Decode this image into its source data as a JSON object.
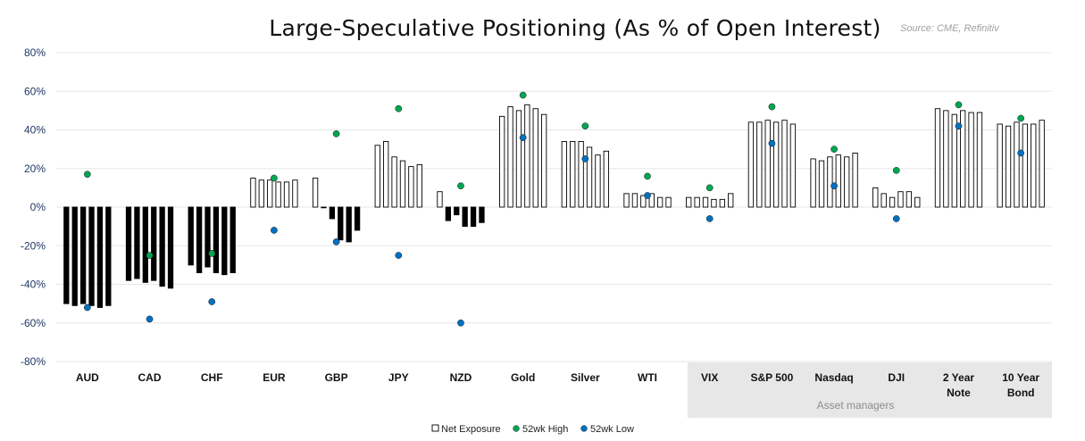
{
  "chart_data": {
    "type": "bar",
    "title": "Large-Speculative Positioning (As % of Open Interest)",
    "source": "Source: CME, Refinitiv",
    "ylim": [
      -80,
      80
    ],
    "yticks": [
      "80%",
      "60%",
      "40%",
      "20%",
      "0%",
      "-20%",
      "-40%",
      "-60%",
      "-80%"
    ],
    "grid": true,
    "legend_position": "bottom-center",
    "shaded_group": {
      "label": "Asset managers",
      "first_category": 10,
      "last_category": 15,
      "color": "#e7e7e7"
    },
    "categories": [
      [
        "AUD"
      ],
      [
        "CAD"
      ],
      [
        "CHF"
      ],
      [
        "EUR"
      ],
      [
        "GBP"
      ],
      [
        "JPY"
      ],
      [
        "NZD"
      ],
      [
        "Gold"
      ],
      [
        "Silver"
      ],
      [
        "WTI"
      ],
      [
        "VIX"
      ],
      [
        "S&P 500"
      ],
      [
        "Nasdaq"
      ],
      [
        "DJI"
      ],
      [
        "2 Year",
        "Note"
      ],
      [
        "10 Year",
        "Bond"
      ]
    ],
    "series": [
      {
        "name": "Net Exposure",
        "kind": "bars",
        "values": [
          [
            -50,
            -51,
            -50,
            -51,
            -52,
            -51
          ],
          [
            -38,
            -37,
            -39,
            -38,
            -41,
            -42
          ],
          [
            -30,
            -34,
            -31,
            -34,
            -35,
            -34
          ],
          [
            15,
            14,
            14,
            13,
            13,
            14
          ],
          [
            15,
            0,
            -6,
            -17,
            -18,
            -12
          ],
          [
            32,
            34,
            26,
            24,
            21,
            22
          ],
          [
            8,
            -7,
            -4,
            -10,
            -10,
            -8
          ],
          [
            47,
            52,
            50,
            53,
            51,
            48
          ],
          [
            34,
            34,
            34,
            31,
            27,
            29
          ],
          [
            7,
            7,
            6,
            7,
            5,
            5
          ],
          [
            5,
            5,
            5,
            4,
            4,
            7
          ],
          [
            44,
            44,
            45,
            44,
            45,
            43
          ],
          [
            25,
            24,
            26,
            27,
            26,
            28
          ],
          [
            10,
            7,
            5,
            8,
            8,
            5
          ],
          [
            51,
            50,
            48,
            50,
            49,
            49
          ],
          [
            43,
            42,
            44,
            43,
            43,
            45
          ]
        ]
      },
      {
        "name": "52wk High",
        "kind": "markers",
        "values": [
          17,
          -25,
          -24,
          15,
          38,
          51,
          11,
          58,
          42,
          16,
          10,
          52,
          30,
          19,
          53,
          46
        ]
      },
      {
        "name": "52wk Low",
        "kind": "markers",
        "values": [
          -52,
          -58,
          -49,
          -12,
          -18,
          -25,
          -60,
          36,
          25,
          6,
          -6,
          33,
          11,
          -6,
          42,
          28
        ]
      }
    ],
    "colors": {
      "positive_bar_fill": "#ffffff",
      "negative_bar_fill": "#000000",
      "bar_stroke": "#000000",
      "high_marker": "#00a651",
      "low_marker": "#0070c0",
      "axis_labels": "#1f3864"
    }
  }
}
